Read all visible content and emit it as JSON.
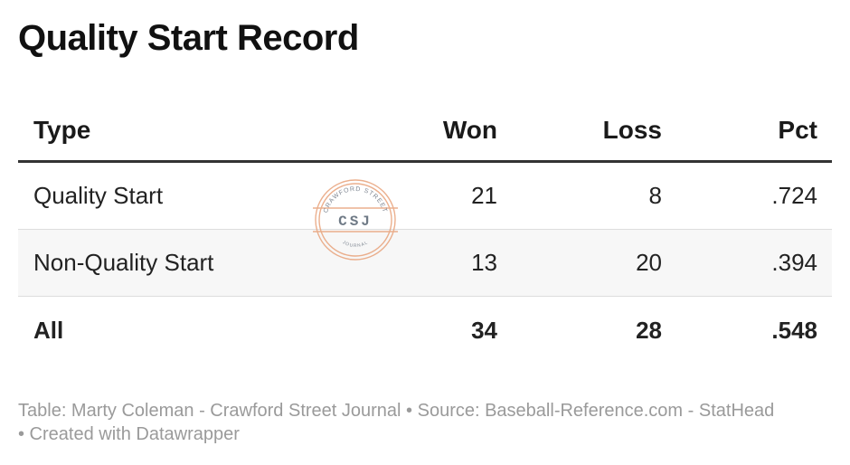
{
  "title": "Quality Start Record",
  "chart_data": {
    "type": "table",
    "columns": [
      "Type",
      "Won",
      "Loss",
      "Pct"
    ],
    "rows": [
      {
        "type": "Quality Start",
        "won": "21",
        "loss": "8",
        "pct": ".724"
      },
      {
        "type": "Non-Quality Start",
        "won": "13",
        "loss": "20",
        "pct": ".394"
      },
      {
        "type": "All",
        "won": "34",
        "loss": "28",
        "pct": ".548"
      }
    ]
  },
  "watermark": {
    "top_text": "CRAWFORD STREET",
    "center_text": "CSJ",
    "bottom_text": "JOURNAL",
    "color": "#e8a27a"
  },
  "footer": {
    "text": "Table: Marty Coleman - Crawford Street Journal • Source: Baseball-Reference.com - StatHead • Created with Datawrapper"
  }
}
